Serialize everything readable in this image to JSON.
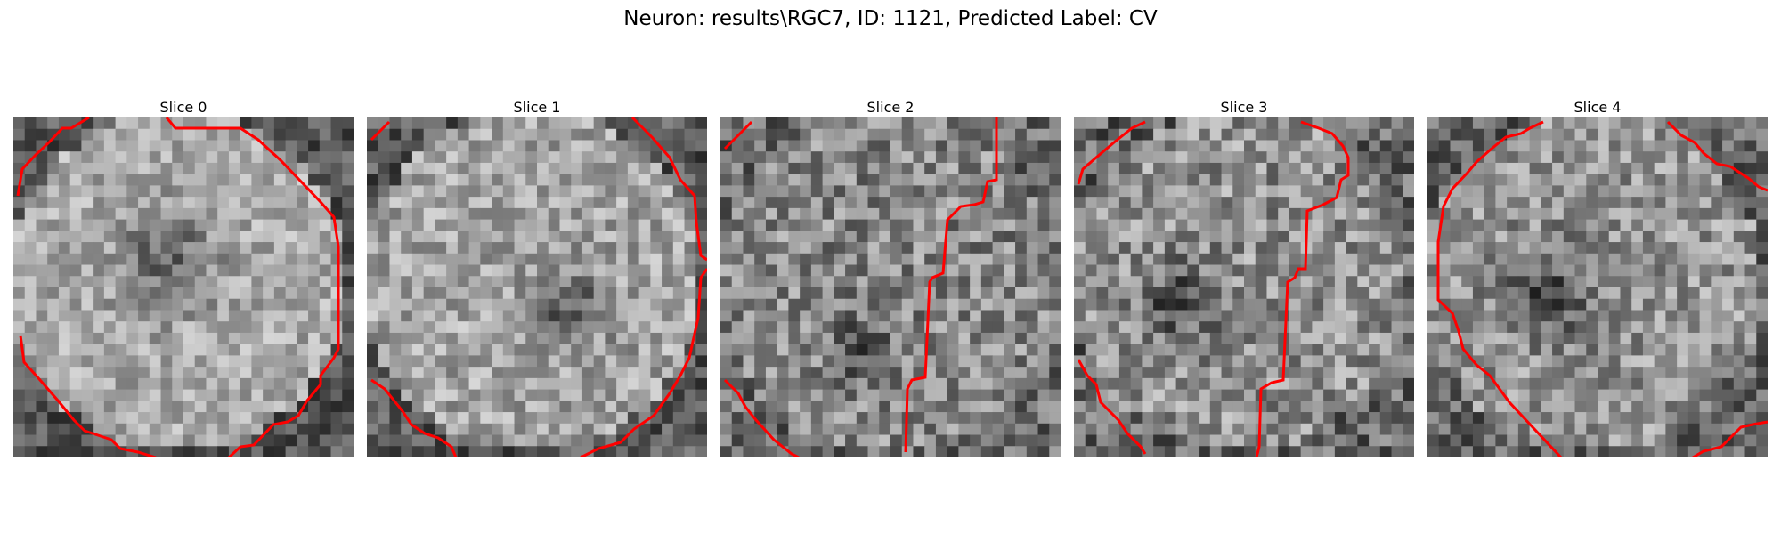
{
  "figure": {
    "title": "Neuron: results\\RGC7, ID: 1121, Predicted Label: CV"
  },
  "slices": [
    {
      "title": "Slice 0",
      "overlay_color": "#ff0000"
    },
    {
      "title": "Slice 1",
      "overlay_color": "#ff0000"
    },
    {
      "title": "Slice 2",
      "overlay_color": "#ff0000"
    },
    {
      "title": "Slice 3",
      "overlay_color": "#ff0000"
    },
    {
      "title": "Slice 4",
      "overlay_color": "#ff0000"
    }
  ]
}
